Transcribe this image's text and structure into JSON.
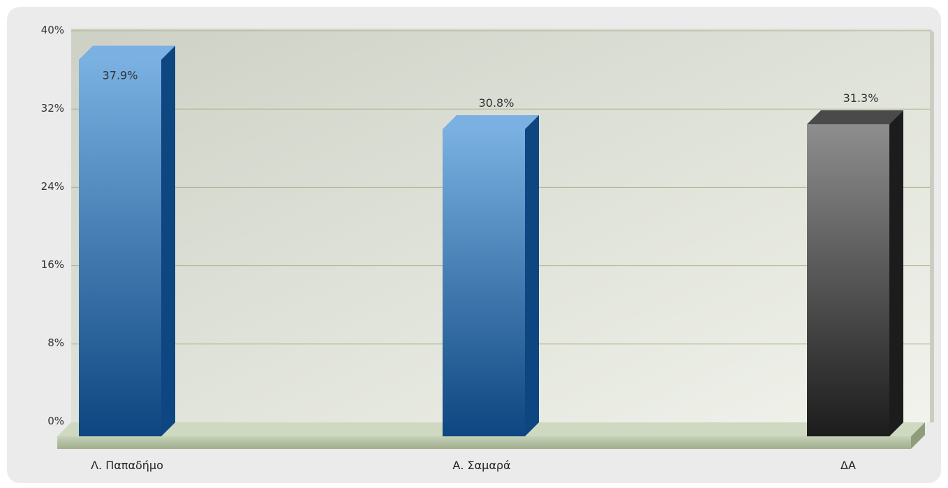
{
  "chart_data": {
    "type": "bar",
    "categories": [
      "Λ. Παπαδήμο",
      "Α. Σαμαρά",
      "ΔΑ"
    ],
    "values": [
      37.9,
      30.8,
      31.3
    ],
    "data_labels": [
      "37.9%",
      "30.8%",
      "31.3%"
    ],
    "y_ticks": [
      "40%",
      "32%",
      "24%",
      "16%",
      "8%",
      "0%"
    ],
    "y_tick_values": [
      40,
      32,
      24,
      16,
      8,
      0
    ],
    "ylim": [
      0,
      40
    ],
    "grid": true,
    "colors": {
      "blue": "#3f7fb8",
      "blue_light": "#7ab1e2",
      "blue_dark": "#0d4680",
      "gray": "#5a5a5a",
      "gray_light": "#8e8e8e",
      "gray_dark": "#1c1c1c",
      "plot_bg": "#dfe3d9",
      "floor": "#b7c4a6",
      "grid": "#a8b48c"
    }
  }
}
